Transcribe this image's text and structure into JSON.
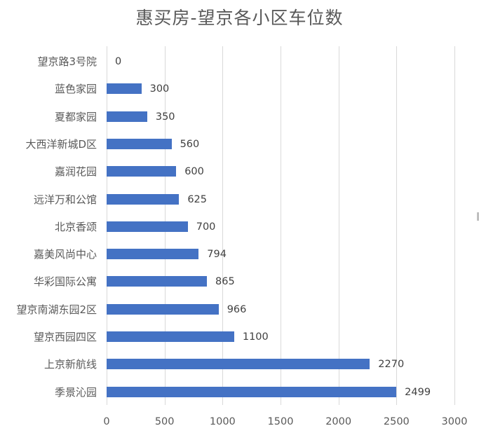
{
  "title": "惠买房-望京各小区车位数",
  "colors": {
    "bar": "#4472c4",
    "grid": "#d9d9d9",
    "text": "#595959"
  },
  "chart_data": {
    "type": "bar",
    "orientation": "horizontal",
    "title": "惠买房-望京各小区车位数",
    "xlabel": "",
    "ylabel": "",
    "xlim": [
      0,
      3000
    ],
    "x_ticks": [
      "0",
      "500",
      "1000",
      "1500",
      "2000",
      "2500",
      "3000"
    ],
    "grid": "vertical",
    "legend": "none",
    "categories": [
      "望京路3号院",
      "蓝色家园",
      "夏都家园",
      "大西洋新城D区",
      "嘉润花园",
      "远洋万和公馆",
      "北京香颂",
      "嘉美风尚中心",
      "华彩国际公寓",
      "望京南湖东园2区",
      "望京西园四区",
      "上京新航线",
      "季景沁园"
    ],
    "values": [
      0,
      300,
      350,
      560,
      600,
      625,
      700,
      794,
      865,
      966,
      1100,
      2270,
      2499
    ],
    "data_labels": [
      "0",
      "300",
      "350",
      "560",
      "600",
      "625",
      "700",
      "794",
      "865",
      "966",
      "1100",
      "2270",
      "2499"
    ]
  }
}
